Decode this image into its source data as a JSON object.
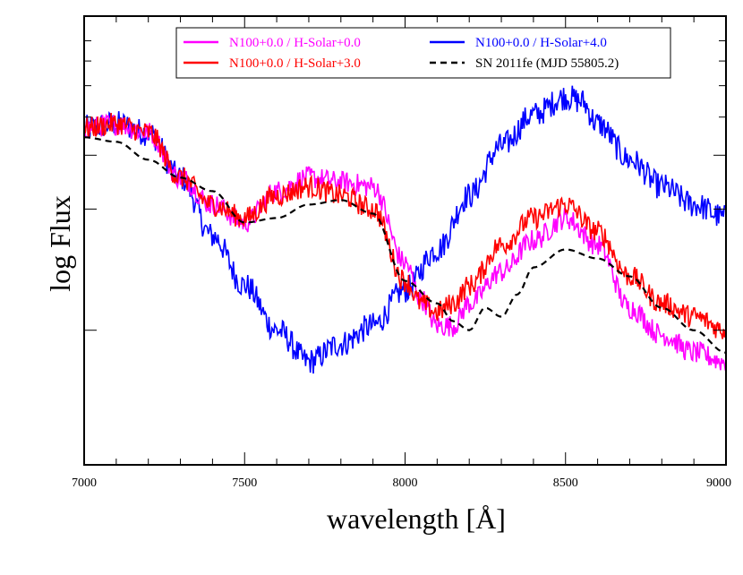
{
  "chart_data": {
    "type": "line",
    "title": "",
    "xlabel": "wavelength [Å]",
    "ylabel": "log Flux",
    "xlim": [
      7000,
      9000
    ],
    "ylim": [
      0,
      1
    ],
    "x_ticks": [
      7000,
      7500,
      8000,
      8500,
      9000
    ],
    "x_tick_labels": [
      "7000",
      "7500",
      "8000",
      "8500",
      "9000"
    ],
    "y_tick_labels_shown": false,
    "grid": false,
    "legend_position": "top",
    "series": [
      {
        "name": "N100+0.0 / H-Solar+0.0",
        "color": "#ff00ff",
        "style": "solid",
        "noise": 0.025,
        "x": [
          7000,
          7100,
          7200,
          7300,
          7400,
          7500,
          7600,
          7700,
          7800,
          7900,
          8000,
          8050,
          8100,
          8150,
          8200,
          8300,
          8400,
          8500,
          8600,
          8700,
          8800,
          8900,
          9000
        ],
        "y": [
          0.75,
          0.76,
          0.74,
          0.64,
          0.58,
          0.54,
          0.61,
          0.64,
          0.63,
          0.62,
          0.45,
          0.37,
          0.31,
          0.31,
          0.36,
          0.43,
          0.5,
          0.55,
          0.49,
          0.35,
          0.29,
          0.25,
          0.23
        ]
      },
      {
        "name": "N100+0.0 / H-Solar+4.0",
        "color": "#0000ff",
        "style": "solid",
        "noise": 0.03,
        "x": [
          7000,
          7100,
          7200,
          7300,
          7400,
          7500,
          7600,
          7700,
          7800,
          7900,
          8000,
          8100,
          8200,
          8300,
          8400,
          8500,
          8550,
          8600,
          8700,
          8800,
          8900,
          9000
        ],
        "y": [
          0.75,
          0.76,
          0.74,
          0.64,
          0.51,
          0.4,
          0.3,
          0.23,
          0.27,
          0.31,
          0.39,
          0.48,
          0.6,
          0.71,
          0.78,
          0.82,
          0.81,
          0.76,
          0.68,
          0.62,
          0.58,
          0.55
        ]
      },
      {
        "name": "N100+0.0 / H-Solar+3.0",
        "color": "#ff0000",
        "style": "solid",
        "noise": 0.025,
        "x": [
          7000,
          7100,
          7200,
          7300,
          7400,
          7500,
          7600,
          7700,
          7800,
          7900,
          8000,
          8050,
          8100,
          8150,
          8200,
          8300,
          8400,
          8500,
          8600,
          8700,
          8800,
          8900,
          9000
        ],
        "y": [
          0.75,
          0.76,
          0.74,
          0.64,
          0.58,
          0.55,
          0.6,
          0.62,
          0.6,
          0.57,
          0.41,
          0.36,
          0.34,
          0.36,
          0.4,
          0.49,
          0.55,
          0.58,
          0.52,
          0.42,
          0.36,
          0.33,
          0.3
        ]
      },
      {
        "name": "SN 2011fe (MJD 55805.2)",
        "color": "#000000",
        "style": "dashed",
        "noise": 0,
        "x": [
          7000,
          7100,
          7200,
          7300,
          7400,
          7500,
          7600,
          7700,
          7800,
          7900,
          8000,
          8100,
          8150,
          8200,
          8250,
          8300,
          8350,
          8400,
          8500,
          8600,
          8700,
          8800,
          8900,
          9000
        ],
        "y": [
          0.73,
          0.72,
          0.68,
          0.64,
          0.61,
          0.54,
          0.55,
          0.58,
          0.59,
          0.56,
          0.41,
          0.36,
          0.32,
          0.3,
          0.35,
          0.33,
          0.38,
          0.44,
          0.48,
          0.46,
          0.42,
          0.35,
          0.3,
          0.25
        ]
      }
    ]
  },
  "legend": {
    "items": [
      {
        "label": "N100+0.0 / H-Solar+0.0",
        "color": "#ff00ff",
        "dashed": false,
        "text_color": "#ff00ff"
      },
      {
        "label": "N100+0.0 / H-Solar+4.0",
        "color": "#0000ff",
        "dashed": false,
        "text_color": "#0000ff"
      },
      {
        "label": "N100+0.0 / H-Solar+3.0",
        "color": "#ff0000",
        "dashed": false,
        "text_color": "#ff0000"
      },
      {
        "label": "SN 2011fe (MJD 55805.2)",
        "color": "#000000",
        "dashed": true,
        "text_color": "#000000"
      }
    ]
  }
}
